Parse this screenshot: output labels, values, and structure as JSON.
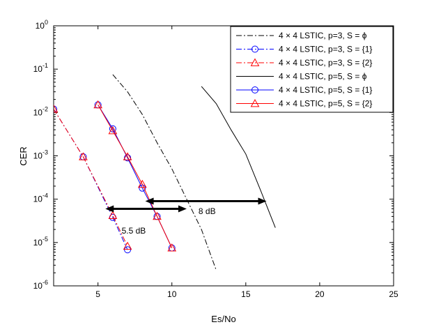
{
  "chart_data": {
    "type": "line",
    "xlabel": "Es/No",
    "ylabel": "CER",
    "xlim": [
      2,
      25
    ],
    "ylim_log10": [
      -6,
      0
    ],
    "log_y": true,
    "grid": false,
    "legend_position": "top-right",
    "x_ticks": [
      "5",
      "10",
      "15",
      "20",
      "25"
    ],
    "x_tick_values": [
      5,
      10,
      15,
      20,
      25
    ],
    "y_tick_exponents": [
      "0",
      "-1",
      "-2",
      "-3",
      "-4",
      "-5",
      "-6"
    ],
    "y_tick_base": "10",
    "series": [
      {
        "name": "4 × 4 LSTIC, p=3, S = ϕ",
        "color": "#000000",
        "dash": "8,3,2,3",
        "marker": "none",
        "x": [
          6,
          7,
          8,
          9,
          10,
          11,
          12,
          13
        ],
        "y": [
          0.075,
          0.03,
          0.009,
          0.002,
          0.0005,
          0.0001,
          2e-05,
          2.3e-06
        ]
      },
      {
        "name": "4 × 4 LSTIC, p=3, S = {1}",
        "color": "#0000ff",
        "dash": "8,3,2,3",
        "marker": "circle",
        "x": [
          2,
          4,
          6,
          7
        ],
        "y": [
          0.012,
          0.00095,
          3.8e-05,
          6.8e-06
        ]
      },
      {
        "name": "4 × 4 LSTIC, p=3, S = {2}",
        "color": "#ff0000",
        "dash": "8,3,2,3",
        "marker": "triangle",
        "x": [
          2,
          4,
          6,
          7
        ],
        "y": [
          0.012,
          0.00095,
          4.2e-05,
          8.2e-06
        ]
      },
      {
        "name": "4 × 4 LSTIC, p=5, S = ϕ",
        "color": "#000000",
        "dash": "",
        "marker": "none",
        "x": [
          12,
          13,
          14,
          15,
          16,
          17
        ],
        "y": [
          0.04,
          0.016,
          0.004,
          0.0011,
          0.00016,
          2.2e-05
        ]
      },
      {
        "name": "4 × 4 LSTIC, p=5, S = {1}",
        "color": "#0000ff",
        "dash": "",
        "marker": "circle",
        "x": [
          5,
          6,
          7,
          8,
          9,
          10
        ],
        "y": [
          0.015,
          0.0042,
          0.0009,
          0.00018,
          4e-05,
          7.5e-06
        ]
      },
      {
        "name": "4 × 4 LSTIC, p=5, S = {2}",
        "color": "#ff0000",
        "dash": "",
        "marker": "triangle",
        "x": [
          5,
          6,
          7,
          8,
          9,
          10
        ],
        "y": [
          0.015,
          0.0038,
          0.00095,
          0.00022,
          4e-05,
          7.5e-06
        ]
      }
    ],
    "annotations": [
      {
        "text": "5.5 dB",
        "x1": 5.5,
        "x2": 11,
        "y": 6e-05,
        "label_x": 6.6,
        "label_y": 1.6e-05
      },
      {
        "text": "8 dB",
        "x1": 8.2,
        "x2": 16.4,
        "y": 9e-05,
        "label_x": 11.8,
        "label_y": 4.5e-05
      }
    ]
  }
}
